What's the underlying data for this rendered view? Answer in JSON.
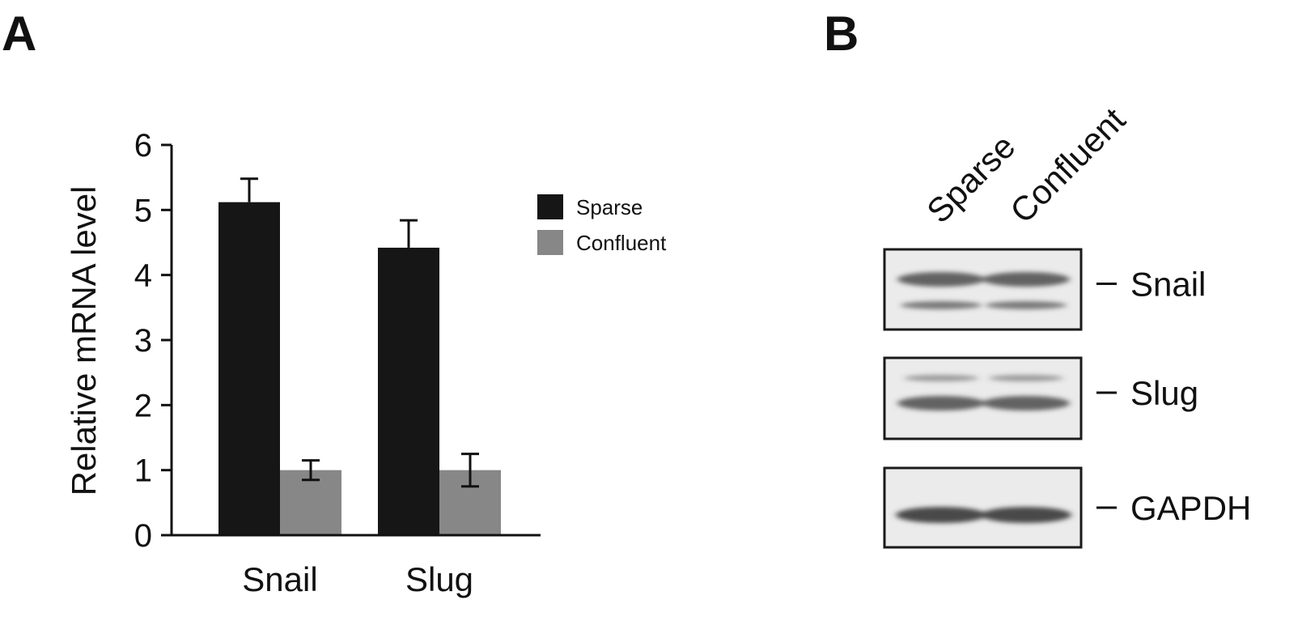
{
  "panels": {
    "a_label": "A",
    "b_label": "B"
  },
  "colors": {
    "sparse": "#161616",
    "confluent": "#878787",
    "axis": "#111111",
    "blot_background": "#ebebeb",
    "band": "#4a4a4a"
  },
  "chart_data": {
    "type": "bar",
    "categories": [
      "Snail",
      "Slug"
    ],
    "series": [
      {
        "name": "Sparse",
        "values": [
          5.12,
          4.42
        ],
        "errors": [
          0.36,
          0.42
        ]
      },
      {
        "name": "Confluent",
        "values": [
          1.0,
          1.0
        ],
        "errors": [
          0.15,
          0.25
        ]
      }
    ],
    "ylabel": "Relative mRNA level",
    "xlabel": "",
    "title": "",
    "ylim": [
      0,
      6
    ],
    "yticks": [
      "0",
      "1",
      "2",
      "3",
      "4",
      "5",
      "6"
    ],
    "grid": false,
    "legend": "right"
  },
  "blot": {
    "lanes": [
      "Sparse",
      "Confluent"
    ],
    "rows": [
      {
        "label": "Snail"
      },
      {
        "label": "Slug"
      },
      {
        "label": "GAPDH"
      }
    ]
  }
}
